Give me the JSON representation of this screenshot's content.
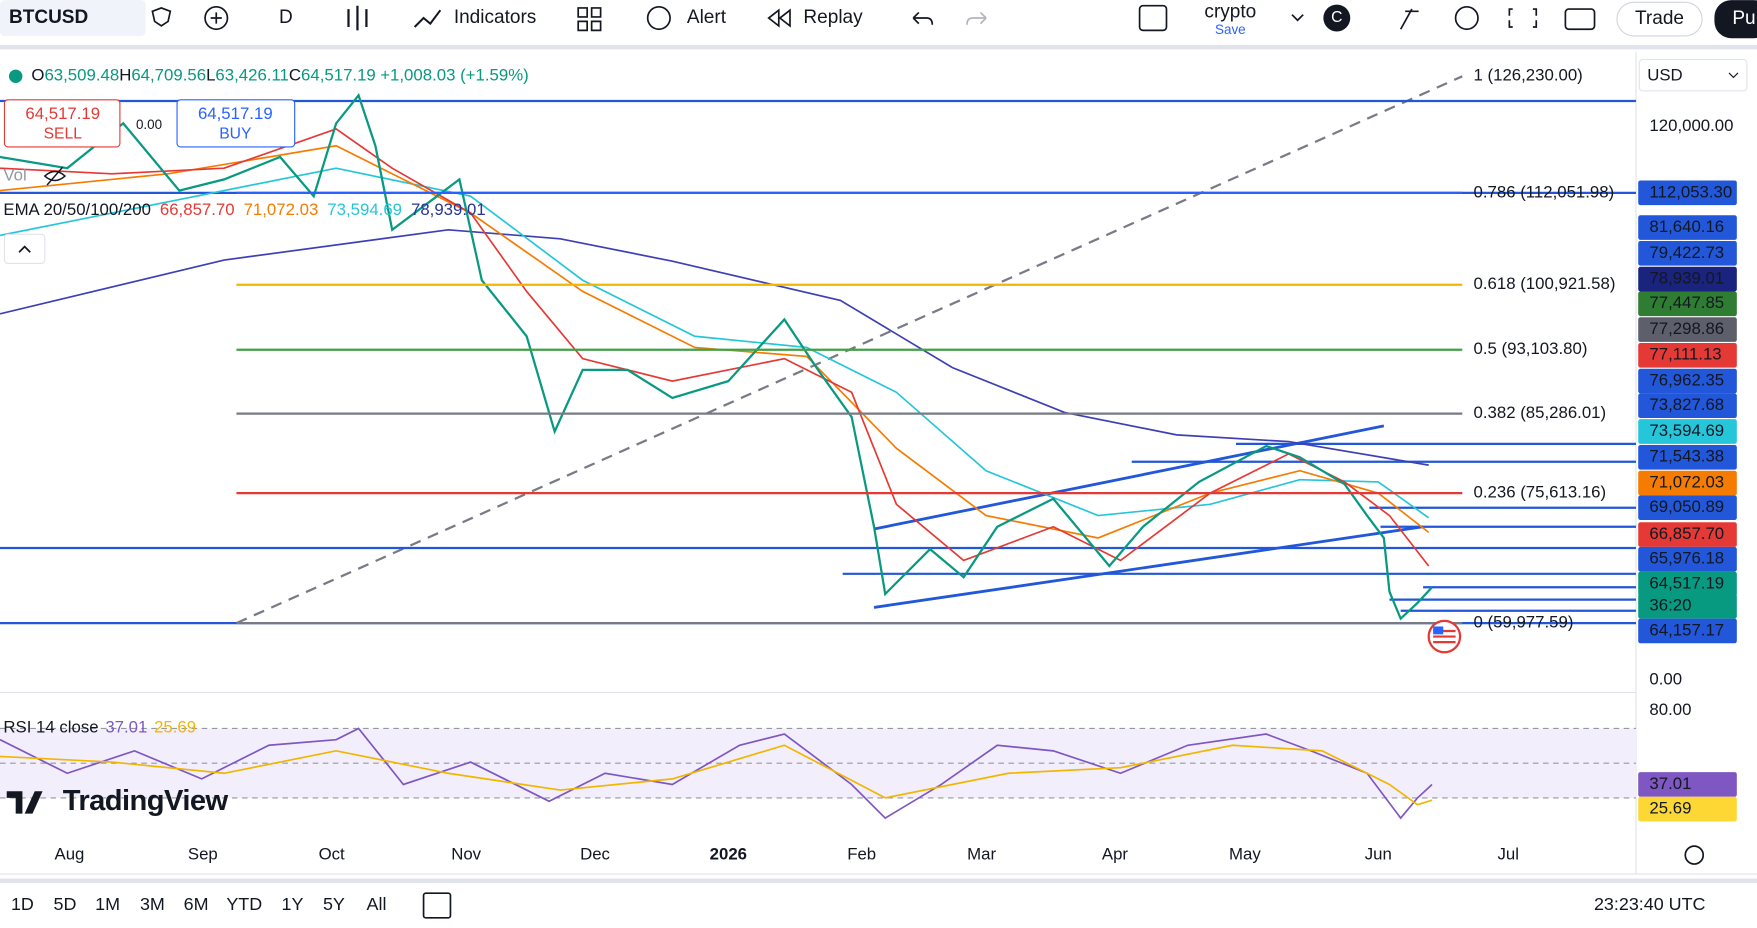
{
  "toolbar": {
    "symbol": "BTCUSD",
    "interval": "D",
    "indicators": "Indicators",
    "alert": "Alert",
    "replay": "Replay",
    "layout_name": "crypto",
    "save": "Save",
    "account": "C",
    "trade": "Trade",
    "publish": "Pu"
  },
  "legend": {
    "ohlc": [
      {
        "key": "O",
        "value": "63,509.48"
      },
      {
        "key": "H",
        "value": "64,709.56"
      },
      {
        "key": "L",
        "value": "63,426.11"
      },
      {
        "key": "C",
        "value": "64,517.19"
      }
    ],
    "change": "+1,008.03 (+1.59%)",
    "sell_price": "64,517.19",
    "sell": "SELL",
    "spread": "0.00",
    "buy_price": "64,517.19",
    "buy": "BUY",
    "vol": "Vol",
    "ema_label": "EMA 20/50/100/200",
    "ema_values": [
      {
        "text": "66,857.70",
        "color": "#e53935"
      },
      {
        "text": "71,072.03",
        "color": "#f57c00"
      },
      {
        "text": "73,594.69",
        "color": "#26c6da"
      },
      {
        "text": "78,939.01",
        "color": "#283593"
      }
    ]
  },
  "fib_levels": [
    {
      "label": "1 (126,230.00)",
      "color": "#787b86"
    },
    {
      "label": "0.786 (112,051.98)",
      "color": "#2962ff"
    },
    {
      "label": "0.618 (100,921.58)",
      "color": "#f2b600"
    },
    {
      "label": "0.5 (93,103.80)",
      "color": "#43a047"
    },
    {
      "label": "0.382 (85,286.01)",
      "color": "#787b86"
    },
    {
      "label": "0.236 (75,613.16)",
      "color": "#e53935"
    },
    {
      "label": "0 (59,977.59)",
      "color": "#787b86"
    }
  ],
  "price_scale": {
    "currency": "USD",
    "labels": [
      {
        "text": "120,000.00",
        "bg": null
      },
      {
        "text": "112,053.30",
        "bg": "#2157d8"
      },
      {
        "text": "81,640.16",
        "bg": "#2157d8"
      },
      {
        "text": "79,422.73",
        "bg": "#2157d8"
      },
      {
        "text": "78,939.01",
        "bg": "#1a237e"
      },
      {
        "text": "77,447.85",
        "bg": "#2e7d32"
      },
      {
        "text": "77,298.86",
        "bg": "#5d606b"
      },
      {
        "text": "77,111.13",
        "bg": "#e53935"
      },
      {
        "text": "76,962.35",
        "bg": "#2157d8"
      },
      {
        "text": "73,827.68",
        "bg": "#2157d8"
      },
      {
        "text": "73,594.69",
        "bg": "#26c6da"
      },
      {
        "text": "71,543.38",
        "bg": "#2157d8"
      },
      {
        "text": "71,072.03",
        "bg": "#f57c00"
      },
      {
        "text": "69,050.89",
        "bg": "#2157d8"
      },
      {
        "text": "66,857.70",
        "bg": "#e53935"
      },
      {
        "text": "65,976.18",
        "bg": "#2157d8"
      },
      {
        "text": "64,517.19",
        "bg": "#089981"
      },
      {
        "text": "36:20",
        "bg": "#089981"
      },
      {
        "text": "64,157.17",
        "bg": "#2157d8"
      },
      {
        "text": "0.00",
        "bg": null
      },
      {
        "text": "80.00",
        "bg": null
      },
      {
        "text": "37.01",
        "bg": "#7e57c2"
      },
      {
        "text": "25.69",
        "bg": "#fdd835"
      }
    ]
  },
  "rsi": {
    "label": "RSI 14 close",
    "value": "37.01",
    "ma": "25.69"
  },
  "logo": "TradingView",
  "time_axis": [
    "Aug",
    "Sep",
    "Oct",
    "Nov",
    "Dec",
    "2026",
    "Feb",
    "Mar",
    "Apr",
    "May",
    "Jun",
    "Jul"
  ],
  "ranges": [
    "1D",
    "5D",
    "1M",
    "3M",
    "6M",
    "YTD",
    "1Y",
    "5Y",
    "All"
  ],
  "clock": "23:23:40 UTC"
}
